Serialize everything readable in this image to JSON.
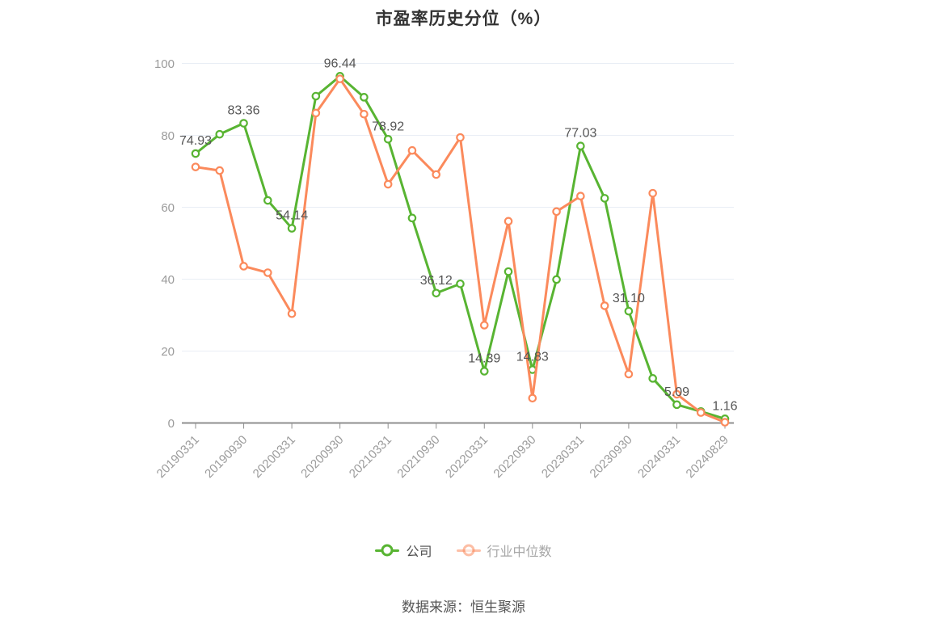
{
  "header": {
    "title": "市盈率历史分位（%）"
  },
  "footer": {
    "source": "数据来源：恒生聚源"
  },
  "legend": {
    "items": [
      {
        "label": "公司",
        "color": "#58B432",
        "text_color": "#4D4D4D",
        "dimmed": false
      },
      {
        "label": "行业中位数",
        "color": "#FB8A5C",
        "text_color": "#A6A6A6",
        "dimmed": true
      }
    ]
  },
  "chart_data": {
    "type": "line",
    "title": "市盈率历史分位（%）",
    "xlabel": "",
    "ylabel": "",
    "ylim": [
      0,
      100
    ],
    "yticks": [
      0,
      20,
      40,
      60,
      80,
      100
    ],
    "grid": true,
    "legend_position": "bottom",
    "x": [
      "20190331",
      "20190630",
      "20190930",
      "20191231",
      "20200331",
      "20200630",
      "20200930",
      "20201231",
      "20210331",
      "20210630",
      "20210930",
      "20211231",
      "20220331",
      "20220630",
      "20220930",
      "20221231",
      "20230331",
      "20230630",
      "20230930",
      "20231231",
      "20240331",
      "20240630",
      "20240829"
    ],
    "x_tick_indices": [
      0,
      2,
      4,
      6,
      8,
      10,
      12,
      14,
      16,
      18,
      20,
      22
    ],
    "x_tick_labels": [
      "20190331",
      "20190930",
      "20200331",
      "20200930",
      "20210331",
      "20210930",
      "20220331",
      "20220930",
      "20230331",
      "20230930",
      "20240331",
      "20240829"
    ],
    "series": [
      {
        "name": "公司",
        "color": "#58B432",
        "values": [
          74.93,
          80.3,
          83.36,
          61.9,
          54.14,
          90.9,
          96.44,
          90.6,
          78.92,
          57.0,
          36.12,
          38.7,
          14.39,
          42.1,
          14.83,
          39.9,
          77.03,
          62.5,
          31.1,
          12.4,
          5.09,
          3.2,
          1.16
        ]
      },
      {
        "name": "行业中位数",
        "color": "#FB8A5C",
        "values": [
          71.2,
          70.2,
          43.6,
          41.8,
          30.4,
          86.2,
          95.7,
          85.9,
          66.4,
          75.8,
          69.1,
          79.4,
          27.2,
          56.1,
          6.9,
          58.8,
          63.1,
          32.6,
          13.6,
          63.9,
          8.0,
          2.9,
          0.2
        ]
      }
    ],
    "point_labels": {
      "series": "公司",
      "indices": [
        0,
        2,
        4,
        6,
        8,
        10,
        12,
        14,
        16,
        18,
        20,
        22
      ],
      "texts": [
        "74.93",
        "83.36",
        "54.14",
        "96.44",
        "78.92",
        "36.12",
        "14.39",
        "14.83",
        "77.03",
        "31.10",
        "5.09",
        "1.16"
      ]
    },
    "style": {
      "grid_color": "#E9EEF5",
      "axis_color": "#8F8F8F",
      "tick_label_color": "#9B9B9B",
      "point_label_color": "#555555"
    }
  }
}
